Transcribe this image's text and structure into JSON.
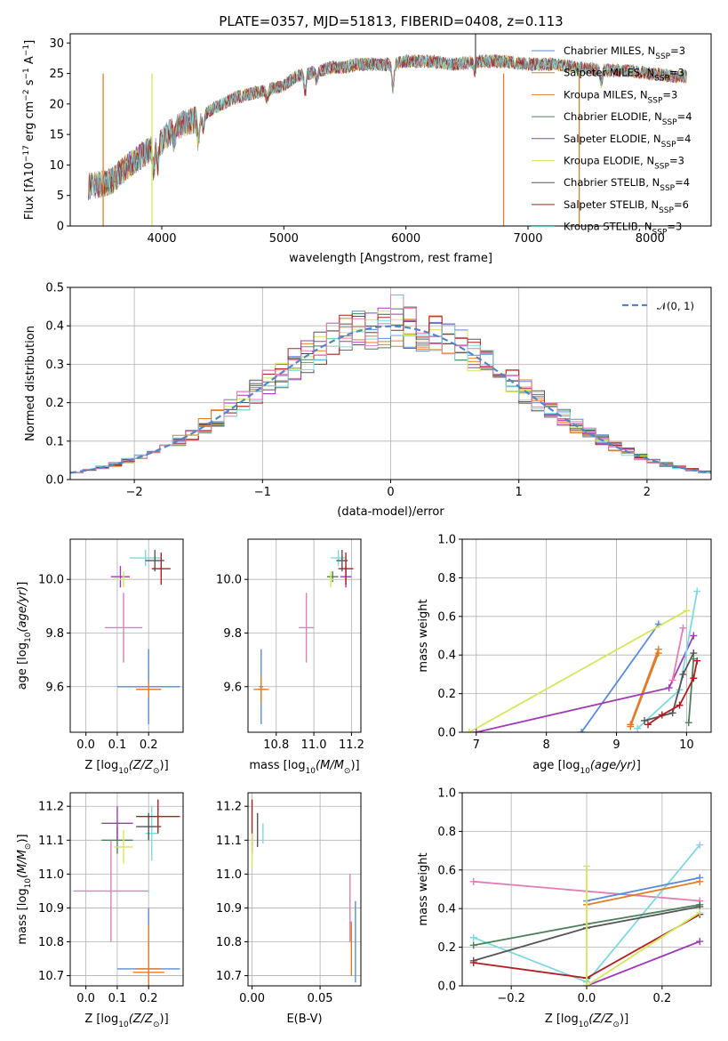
{
  "title": "PLATE=0357, MJD=51813, FIBERID=0408, z=0.113",
  "colors": {
    "Chabrier MILES": "#5b8ad6",
    "Salpeter MILES": "#e07d2a",
    "Kroupa MILES": "#e07d2a",
    "Chabrier ELODIE": "#4f7f5a",
    "Salpeter ELODIE": "#9e3bb5",
    "Kroupa ELODIE": "#d4e65b",
    "Chabrier STELIB": "#555555",
    "Salpeter STELIB": "#b01e22",
    "Kroupa STELIB": "#7dd8e0",
    "pink": "#e07fb4",
    "gauss": "#4f86c6"
  },
  "chart_data": [
    {
      "type": "line",
      "name": "spectrum",
      "xlabel": "wavelength [Angstrom, rest frame]",
      "ylabel_text": "Flux [fλ10",
      "xlim": [
        3250,
        8500
      ],
      "ylim": [
        0,
        31.5
      ],
      "xticks": [
        4000,
        5000,
        6000,
        7000,
        8000
      ],
      "yticks": [
        0,
        5,
        10,
        15,
        20,
        25,
        30
      ],
      "legend_position": "right",
      "legend": [
        {
          "label": "Chabrier MILES, N",
          "n": "3",
          "color_key": "Chabrier MILES"
        },
        {
          "label": "Salpeter MILES, N",
          "n": "3",
          "color_key": "Salpeter MILES"
        },
        {
          "label": "Kroupa MILES, N",
          "n": "3",
          "color_key": "Kroupa MILES"
        },
        {
          "label": "Chabrier ELODIE, N",
          "n": "4",
          "color_key": "Chabrier ELODIE"
        },
        {
          "label": "Salpeter ELODIE, N",
          "n": "4",
          "color_key": "Salpeter ELODIE"
        },
        {
          "label": "Kroupa ELODIE, N",
          "n": "3",
          "color_key": "Kroupa ELODIE"
        },
        {
          "label": "Chabrier STELIB, N",
          "n": "4",
          "color_key": "Chabrier STELIB"
        },
        {
          "label": "Salpeter STELIB, N",
          "n": "6",
          "color_key": "Salpeter STELIB"
        },
        {
          "label": "Kroupa STELIB, N",
          "n": "3",
          "color_key": "Kroupa STELIB"
        }
      ],
      "continuum": [
        [
          3400,
          6.5
        ],
        [
          3500,
          6.8
        ],
        [
          3600,
          7.5
        ],
        [
          3700,
          9.5
        ],
        [
          3800,
          11
        ],
        [
          3900,
          12.5
        ],
        [
          4000,
          14
        ],
        [
          4100,
          16
        ],
        [
          4200,
          17
        ],
        [
          4300,
          17.5
        ],
        [
          4400,
          19
        ],
        [
          4500,
          20
        ],
        [
          4600,
          21
        ],
        [
          4700,
          21.5
        ],
        [
          4800,
          22
        ],
        [
          4900,
          22.5
        ],
        [
          5000,
          23
        ],
        [
          5100,
          24.5
        ],
        [
          5200,
          25
        ],
        [
          5300,
          25.5
        ],
        [
          5400,
          26
        ],
        [
          5500,
          26
        ],
        [
          5600,
          26.5
        ],
        [
          5700,
          26.5
        ],
        [
          5800,
          26.5
        ],
        [
          5900,
          26.5
        ],
        [
          6000,
          27
        ],
        [
          6200,
          27
        ],
        [
          6400,
          26.5
        ],
        [
          6600,
          27
        ],
        [
          6800,
          27
        ],
        [
          7000,
          26.5
        ],
        [
          7200,
          26.5
        ],
        [
          7400,
          26
        ],
        [
          7600,
          25.5
        ],
        [
          7800,
          25.5
        ],
        [
          8000,
          25
        ],
        [
          8200,
          24.5
        ],
        [
          8300,
          24.5
        ]
      ],
      "absorption_lines": [
        [
          3934,
          4
        ],
        [
          3969,
          3.5
        ],
        [
          4101,
          2
        ],
        [
          4300,
          3.5
        ],
        [
          4340,
          2
        ],
        [
          4861,
          1.5
        ],
        [
          5175,
          3
        ],
        [
          5270,
          1.5
        ],
        [
          5893,
          4
        ],
        [
          6563,
          1.5
        ],
        [
          7600,
          2
        ]
      ],
      "spikes": [
        [
          3520,
          0,
          "Salpeter MILES"
        ],
        [
          3920,
          0,
          "Kroupa ELODIE"
        ],
        [
          6800,
          0,
          "Kroupa MILES"
        ],
        [
          7420,
          0,
          "Salpeter MILES"
        ],
        [
          6570,
          31.5,
          "Chabrier STELIB"
        ]
      ]
    },
    {
      "type": "histogram",
      "name": "residuals",
      "xlabel": "(data-model)/error",
      "ylabel": "Normed distribution",
      "xlim": [
        -2.5,
        2.5
      ],
      "ylim": [
        0,
        0.5
      ],
      "xticks": [
        -2,
        -1,
        0,
        1,
        2
      ],
      "yticks": [
        0.0,
        0.1,
        0.2,
        0.3,
        0.4,
        0.5
      ],
      "legend_label": "𝒩(0, 1)",
      "legend_position": "top-right",
      "bin_width": 0.1,
      "series_keys": [
        "Chabrier MILES",
        "Salpeter MILES",
        "Kroupa MILES",
        "Chabrier ELODIE",
        "Salpeter ELODIE",
        "Kroupa ELODIE",
        "Chabrier STELIB",
        "Salpeter STELIB",
        "Kroupa STELIB",
        "pink"
      ]
    },
    {
      "type": "scatter",
      "name": "age-vs-Z",
      "xlabel": "Z [log10(Z/Z⊙)]",
      "ylabel": "age  [log10(age/yr)]",
      "xlim": [
        -0.05,
        0.31
      ],
      "ylim": [
        9.43,
        10.15
      ],
      "xticks": [
        0.0,
        0.1,
        0.2
      ],
      "yticks": [
        9.6,
        9.8,
        10.0
      ],
      "points": [
        {
          "key": "Chabrier MILES",
          "x": 0.2,
          "y": 9.6,
          "xerr": 0.1,
          "yerr": 0.14
        },
        {
          "key": "Salpeter MILES",
          "x": 0.2,
          "y": 9.59,
          "xerr": 0.04,
          "yerr": 0.03
        },
        {
          "key": "Kroupa MILES",
          "x": 0.2,
          "y": 9.59,
          "xerr": 0.04,
          "yerr": 0.03
        },
        {
          "key": "pink",
          "x": 0.12,
          "y": 9.82,
          "xerr": 0.06,
          "yerr": 0.13
        },
        {
          "key": "Salpeter ELODIE",
          "x": 0.11,
          "y": 10.01,
          "xerr": 0.03,
          "yerr": 0.04
        },
        {
          "key": "Kroupa ELODIE",
          "x": 0.12,
          "y": 10.0,
          "xerr": 0.03,
          "yerr": 0.03
        },
        {
          "key": "Kroupa STELIB",
          "x": 0.19,
          "y": 10.08,
          "xerr": 0.05,
          "yerr": 0.03
        },
        {
          "key": "Chabrier STELIB",
          "x": 0.22,
          "y": 10.07,
          "xerr": 0.03,
          "yerr": 0.04
        },
        {
          "key": "Salpeter STELIB",
          "x": 0.24,
          "y": 10.04,
          "xerr": 0.03,
          "yerr": 0.06
        }
      ]
    },
    {
      "type": "scatter",
      "name": "age-vs-mass",
      "xlabel": "mass [log10(M/M⊙)]",
      "ylabel": "",
      "xlim": [
        10.65,
        11.25
      ],
      "ylim": [
        9.43,
        10.15
      ],
      "xticks": [
        10.8,
        11.0,
        11.2
      ],
      "yticks": [
        9.6,
        9.8,
        10.0
      ],
      "points": [
        {
          "key": "Chabrier MILES",
          "x": 10.72,
          "y": 9.6,
          "xerr": 0.01,
          "yerr": 0.14
        },
        {
          "key": "Salpeter MILES",
          "x": 10.72,
          "y": 9.59,
          "xerr": 0.04,
          "yerr": 0.03
        },
        {
          "key": "Kroupa MILES",
          "x": 10.72,
          "y": 9.59,
          "xerr": 0.02,
          "yerr": 0.05
        },
        {
          "key": "pink",
          "x": 10.96,
          "y": 9.82,
          "xerr": 0.04,
          "yerr": 0.13
        },
        {
          "key": "Chabrier ELODIE",
          "x": 11.1,
          "y": 10.01,
          "xerr": 0.03,
          "yerr": 0.02
        },
        {
          "key": "Kroupa ELODIE",
          "x": 11.09,
          "y": 10.0,
          "xerr": 0.02,
          "yerr": 0.03
        },
        {
          "key": "Salpeter ELODIE",
          "x": 11.17,
          "y": 10.01,
          "xerr": 0.03,
          "yerr": 0.04
        },
        {
          "key": "Kroupa STELIB",
          "x": 11.13,
          "y": 10.08,
          "xerr": 0.04,
          "yerr": 0.03
        },
        {
          "key": "Chabrier STELIB",
          "x": 11.15,
          "y": 10.07,
          "xerr": 0.03,
          "yerr": 0.04
        },
        {
          "key": "Salpeter STELIB",
          "x": 11.17,
          "y": 10.04,
          "xerr": 0.04,
          "yerr": 0.06
        }
      ]
    },
    {
      "type": "line",
      "name": "weight-vs-age",
      "xlabel": "age  [log10(age/yr)]",
      "ylabel": "mass weight",
      "xlim": [
        6.8,
        10.35
      ],
      "ylim": [
        0,
        1.0
      ],
      "xticks": [
        7,
        8,
        9,
        10
      ],
      "yticks": [
        0.0,
        0.2,
        0.4,
        0.6,
        0.8,
        1.0
      ],
      "series": [
        {
          "key": "Chabrier MILES",
          "pts": [
            [
              8.5,
              0.0
            ],
            [
              9.6,
              0.56
            ]
          ]
        },
        {
          "key": "Salpeter MILES",
          "pts": [
            [
              9.2,
              0.04
            ],
            [
              9.6,
              0.43
            ]
          ]
        },
        {
          "key": "Kroupa MILES",
          "pts": [
            [
              9.2,
              0.03
            ],
            [
              9.6,
              0.41
            ]
          ]
        },
        {
          "key": "Kroupa ELODIE",
          "pts": [
            [
              6.9,
              0.0
            ],
            [
              10.0,
              0.63
            ]
          ]
        },
        {
          "key": "Salpeter ELODIE",
          "pts": [
            [
              7.0,
              0.0
            ],
            [
              9.75,
              0.23
            ],
            [
              10.1,
              0.5
            ]
          ]
        },
        {
          "key": "pink",
          "pts": [
            [
              9.8,
              0.27
            ],
            [
              9.95,
              0.54
            ]
          ]
        },
        {
          "key": "Kroupa STELIB",
          "pts": [
            [
              9.3,
              0.02
            ],
            [
              9.9,
              0.22
            ],
            [
              10.15,
              0.73
            ]
          ]
        },
        {
          "key": "Chabrier STELIB",
          "pts": [
            [
              9.4,
              0.06
            ],
            [
              9.8,
              0.1
            ],
            [
              9.95,
              0.3
            ],
            [
              10.1,
              0.41
            ]
          ]
        },
        {
          "key": "Chabrier ELODIE",
          "pts": [
            [
              10.03,
              0.05
            ],
            [
              10.1,
              0.38
            ]
          ]
        },
        {
          "key": "Salpeter STELIB",
          "pts": [
            [
              9.45,
              0.04
            ],
            [
              9.65,
              0.09
            ],
            [
              9.9,
              0.14
            ],
            [
              10.1,
              0.28
            ],
            [
              10.15,
              0.37
            ]
          ]
        }
      ]
    },
    {
      "type": "scatter",
      "name": "mass-vs-Z",
      "xlabel": "Z [log10(Z/Z⊙)]",
      "ylabel": "mass [log10(M/M⊙)]",
      "xlim": [
        -0.05,
        0.31
      ],
      "ylim": [
        10.67,
        11.24
      ],
      "xticks": [
        0.0,
        0.1,
        0.2
      ],
      "yticks": [
        10.7,
        10.8,
        10.9,
        11.0,
        11.1,
        11.2
      ],
      "points": [
        {
          "key": "Chabrier MILES",
          "x": 0.2,
          "y": 10.72,
          "xerr": 0.1,
          "yerr": 0.18
        },
        {
          "key": "Salpeter MILES",
          "x": 0.2,
          "y": 10.71,
          "xerr": 0.05,
          "yerr": 0.03
        },
        {
          "key": "Kroupa MILES",
          "x": 0.2,
          "y": 10.72,
          "xerr": 0.04,
          "yerr": 0.13
        },
        {
          "key": "pink",
          "x": 0.08,
          "y": 10.95,
          "xerr": 0.12,
          "yerr": 0.15
        },
        {
          "key": "Chabrier ELODIE",
          "x": 0.1,
          "y": 11.1,
          "xerr": 0.05,
          "yerr": 0.04
        },
        {
          "key": "Salpeter ELODIE",
          "x": 0.1,
          "y": 11.15,
          "xerr": 0.05,
          "yerr": 0.05
        },
        {
          "key": "Kroupa ELODIE",
          "x": 0.12,
          "y": 11.08,
          "xerr": 0.03,
          "yerr": 0.05
        },
        {
          "key": "Kroupa STELIB",
          "x": 0.21,
          "y": 11.12,
          "xerr": 0.02,
          "yerr": 0.08
        },
        {
          "key": "Chabrier STELIB",
          "x": 0.2,
          "y": 11.14,
          "xerr": 0.04,
          "yerr": 0.04
        },
        {
          "key": "Salpeter STELIB",
          "x": 0.23,
          "y": 11.17,
          "xerr": 0.07,
          "yerr": 0.05
        }
      ]
    },
    {
      "type": "scatter",
      "name": "mass-vs-EBV",
      "xlabel": "E(B-V)",
      "ylabel": "",
      "xlim": [
        -0.003,
        0.08
      ],
      "ylim": [
        10.67,
        11.24
      ],
      "xticks": [
        0.0,
        0.05
      ],
      "yticks": [
        10.7,
        10.8,
        10.9,
        11.0,
        11.1,
        11.2
      ],
      "points": [
        {
          "key": "Salpeter STELIB",
          "x": 0.0,
          "y": 11.14,
          "xerr": 0,
          "yerr": 0.08
        },
        {
          "key": "Kroupa ELODIE",
          "x": 0.0,
          "y": 11.07,
          "xerr": 0,
          "yerr": 0.05
        },
        {
          "key": "Chabrier STELIB",
          "x": 0.004,
          "y": 11.13,
          "xerr": 0,
          "yerr": 0.05
        },
        {
          "key": "Kroupa STELIB",
          "x": 0.008,
          "y": 11.12,
          "xerr": 0,
          "yerr": 0.03
        },
        {
          "key": "pink",
          "x": 0.072,
          "y": 10.9,
          "xerr": 0,
          "yerr": 0.1
        },
        {
          "key": "Salpeter MILES",
          "x": 0.073,
          "y": 10.78,
          "xerr": 0,
          "yerr": 0.08
        },
        {
          "key": "Chabrier MILES",
          "x": 0.076,
          "y": 10.8,
          "xerr": 0,
          "yerr": 0.12
        }
      ]
    },
    {
      "type": "line",
      "name": "weight-vs-Z",
      "xlabel": "Z [log10(Z/Z⊙)]",
      "ylabel": "mass weight",
      "xlim": [
        -0.33,
        0.33
      ],
      "ylim": [
        0,
        1.0
      ],
      "xticks": [
        -0.2,
        0.0,
        0.2
      ],
      "yticks": [
        0.0,
        0.2,
        0.4,
        0.6,
        0.8,
        1.0
      ],
      "series": [
        {
          "key": "pink",
          "pts": [
            [
              -0.3,
              0.54
            ],
            [
              0.0,
              0.49
            ],
            [
              0.3,
              0.44
            ]
          ]
        },
        {
          "key": "Kroupa STELIB",
          "pts": [
            [
              -0.3,
              0.25
            ],
            [
              0.0,
              0.02
            ],
            [
              0.3,
              0.73
            ]
          ]
        },
        {
          "key": "Chabrier ELODIE",
          "pts": [
            [
              -0.3,
              0.21
            ],
            [
              0.0,
              0.32
            ],
            [
              0.3,
              0.42
            ]
          ]
        },
        {
          "key": "Chabrier STELIB",
          "pts": [
            [
              -0.3,
              0.13
            ],
            [
              0.0,
              0.3
            ],
            [
              0.3,
              0.41
            ]
          ]
        },
        {
          "key": "Salpeter STELIB",
          "pts": [
            [
              -0.3,
              0.12
            ],
            [
              0.0,
              0.04
            ],
            [
              0.3,
              0.37
            ]
          ]
        },
        {
          "key": "Chabrier MILES",
          "pts": [
            [
              0.0,
              0.44
            ],
            [
              0.3,
              0.56
            ]
          ]
        },
        {
          "key": "Salpeter MILES",
          "pts": [
            [
              0.0,
              0.42
            ],
            [
              0.3,
              0.54
            ]
          ]
        },
        {
          "key": "Salpeter ELODIE",
          "pts": [
            [
              0.0,
              0.0
            ],
            [
              0.3,
              0.23
            ]
          ]
        },
        {
          "key": "Kroupa ELODIE",
          "pts": [
            [
              0.0,
              0.62
            ],
            [
              0.0,
              0.0
            ],
            [
              0.3,
              0.38
            ]
          ]
        }
      ]
    }
  ]
}
